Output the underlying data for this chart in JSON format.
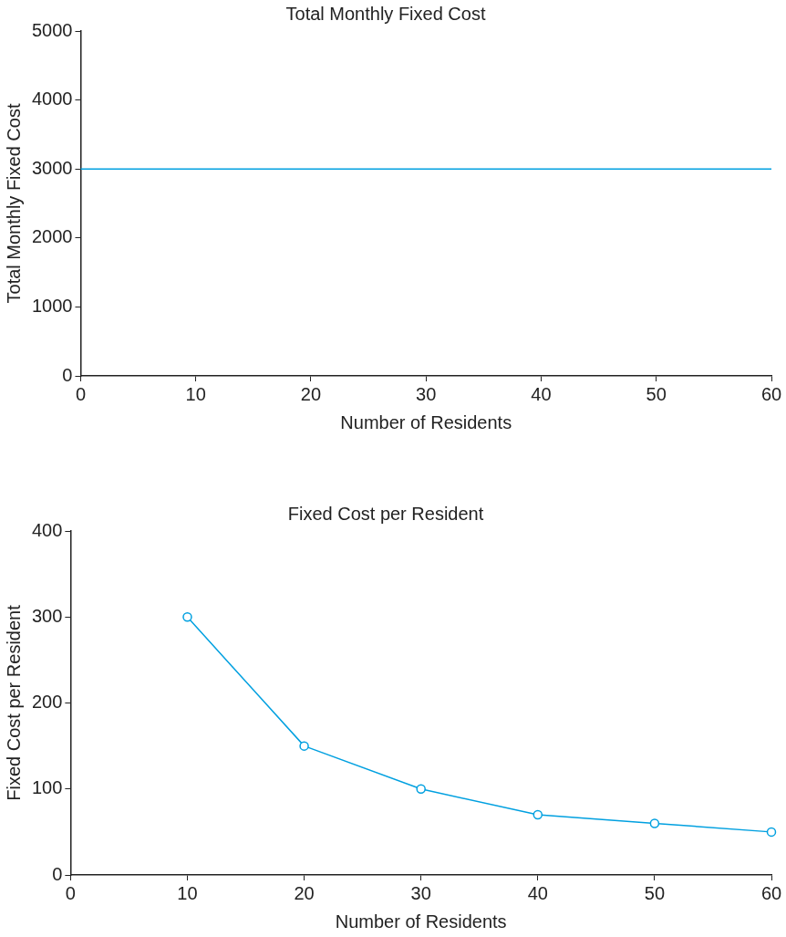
{
  "chart_data": [
    {
      "type": "line",
      "title": "Total Monthly Fixed Cost",
      "xlabel": "Number of Residents",
      "ylabel": "Total Monthly Fixed Cost",
      "x": [
        0,
        60
      ],
      "series": [
        {
          "color": "#00a0e0",
          "values": [
            3000,
            3000
          ]
        }
      ],
      "xlim": [
        0,
        60
      ],
      "ylim": [
        0,
        5000
      ],
      "xticks": [
        0,
        10,
        20,
        30,
        40,
        50,
        60
      ],
      "yticks": [
        0,
        1000,
        2000,
        3000,
        4000,
        5000
      ],
      "marker": "none"
    },
    {
      "type": "line",
      "title": "Fixed Cost per Resident",
      "xlabel": "Number of Residents",
      "ylabel": "Fixed Cost per Resident",
      "x": [
        10,
        20,
        30,
        40,
        50,
        60
      ],
      "series": [
        {
          "color": "#00a0e0",
          "values": [
            300,
            150,
            100,
            70,
            60,
            50
          ]
        }
      ],
      "xlim": [
        0,
        60
      ],
      "ylim": [
        0,
        400
      ],
      "xticks": [
        0,
        10,
        20,
        30,
        40,
        50,
        60
      ],
      "yticks": [
        0,
        100,
        200,
        300,
        400
      ],
      "marker": "circle"
    }
  ]
}
